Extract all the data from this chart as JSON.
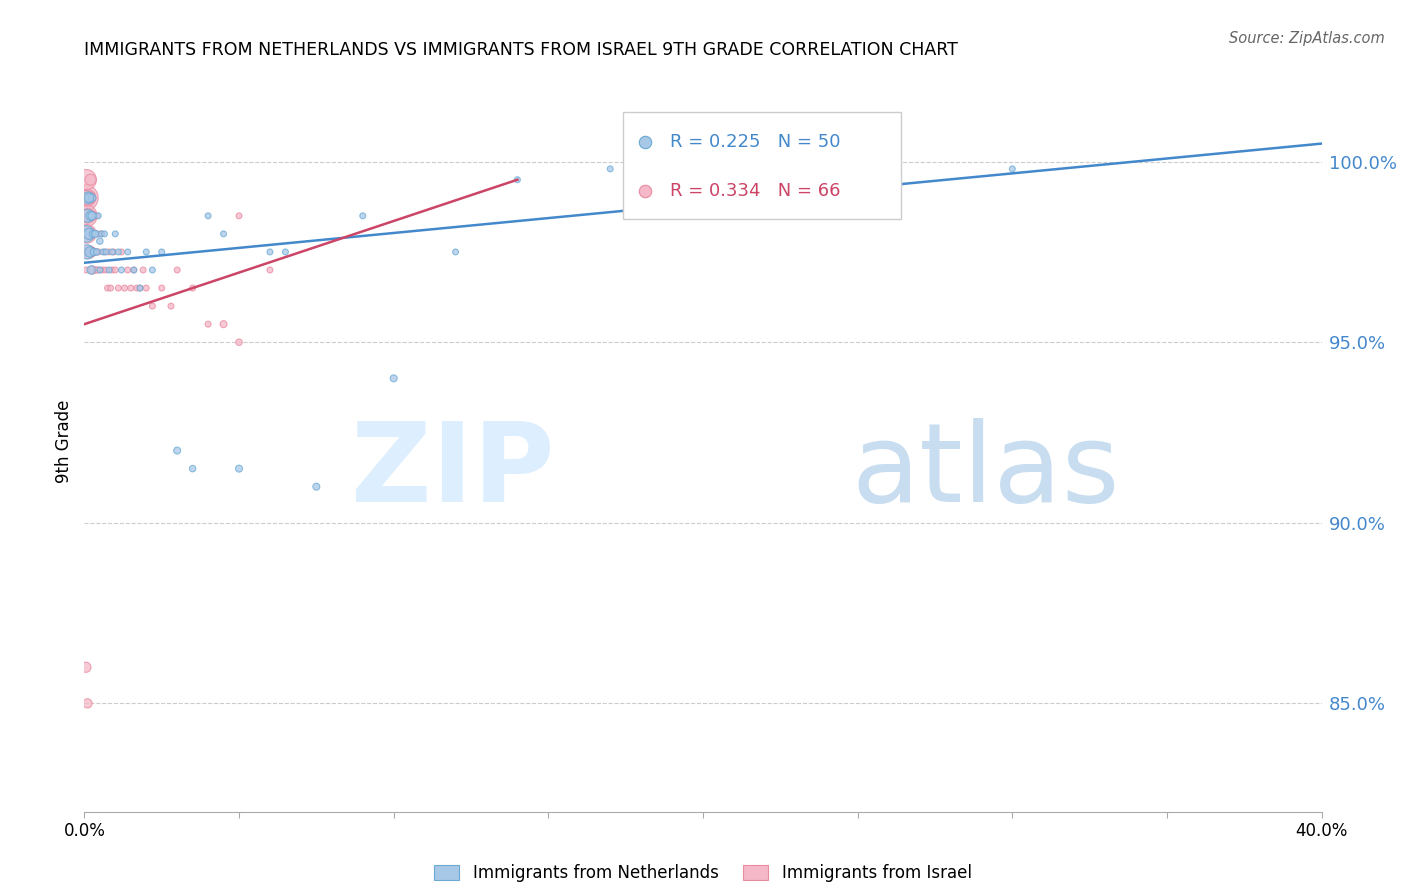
{
  "title": "IMMIGRANTS FROM NETHERLANDS VS IMMIGRANTS FROM ISRAEL 9TH GRADE CORRELATION CHART",
  "source": "Source: ZipAtlas.com",
  "ylabel_left": "9th Grade",
  "xlim": [
    0.0,
    40.0
  ],
  "ylim": [
    82.0,
    102.5
  ],
  "legend1_R": "0.225",
  "legend1_N": "50",
  "legend2_R": "0.334",
  "legend2_N": "66",
  "blue_color": "#a8c8e8",
  "blue_edge_color": "#6aaad4",
  "pink_color": "#f4b8c8",
  "pink_edge_color": "#e88aa0",
  "blue_line_color": "#4488cc",
  "pink_line_color": "#cc4466",
  "right_tick_color": "#4488cc",
  "yticks": [
    85.0,
    90.0,
    95.0,
    100.0
  ],
  "trendline_nl_x0": 0.0,
  "trendline_nl_y0": 97.2,
  "trendline_nl_x1": 40.0,
  "trendline_nl_y1": 100.5,
  "trendline_il_x0": 0.0,
  "trendline_il_y0": 95.5,
  "trendline_il_x1": 14.0,
  "trendline_il_y1": 99.5,
  "netherlands_x": [
    0.05,
    0.08,
    0.1,
    0.12,
    0.15,
    0.18,
    0.2,
    0.22,
    0.25,
    0.28,
    0.3,
    0.35,
    0.4,
    0.45,
    0.5,
    0.55,
    0.6,
    0.65,
    0.7,
    0.8,
    0.9,
    1.0,
    1.1,
    1.2,
    1.4,
    1.6,
    1.8,
    2.0,
    2.2,
    2.5,
    3.0,
    3.5,
    4.0,
    4.5,
    5.0,
    6.0,
    6.5,
    7.5,
    9.0,
    10.0,
    12.0,
    14.0,
    17.0,
    20.0,
    25.0,
    30.0,
    0.15,
    0.25,
    0.35,
    0.5
  ],
  "netherlands_y": [
    98.0,
    97.5,
    98.5,
    99.0,
    98.0,
    97.5,
    98.5,
    97.0,
    99.0,
    98.0,
    97.5,
    98.0,
    97.5,
    98.5,
    97.0,
    98.0,
    97.5,
    98.0,
    97.5,
    97.0,
    97.5,
    98.0,
    97.5,
    97.0,
    97.5,
    97.0,
    96.5,
    97.5,
    97.0,
    97.5,
    92.0,
    91.5,
    98.5,
    98.0,
    91.5,
    97.5,
    97.5,
    91.0,
    98.5,
    94.0,
    97.5,
    99.5,
    99.8,
    99.8,
    99.5,
    99.8,
    99.0,
    98.5,
    98.0,
    97.8
  ],
  "netherlands_sizes": [
    80,
    60,
    50,
    40,
    35,
    30,
    25,
    20,
    18,
    15,
    15,
    12,
    12,
    10,
    10,
    10,
    10,
    10,
    10,
    10,
    10,
    10,
    10,
    10,
    10,
    10,
    10,
    10,
    10,
    10,
    14,
    12,
    10,
    10,
    14,
    10,
    10,
    14,
    10,
    14,
    10,
    10,
    10,
    10,
    10,
    10,
    25,
    20,
    15,
    12
  ],
  "israel_x": [
    0.02,
    0.04,
    0.06,
    0.08,
    0.1,
    0.12,
    0.14,
    0.16,
    0.18,
    0.2,
    0.22,
    0.24,
    0.26,
    0.28,
    0.3,
    0.32,
    0.35,
    0.38,
    0.4,
    0.43,
    0.46,
    0.5,
    0.55,
    0.6,
    0.65,
    0.7,
    0.75,
    0.8,
    0.85,
    0.9,
    0.95,
    1.0,
    1.1,
    1.2,
    1.3,
    1.4,
    1.5,
    1.6,
    1.7,
    1.8,
    1.9,
    2.0,
    2.2,
    2.5,
    2.8,
    3.0,
    3.5,
    4.0,
    5.0,
    6.0,
    0.05,
    0.09,
    0.13,
    0.17,
    0.21,
    0.25,
    0.29,
    0.33,
    0.37,
    0.41,
    0.02,
    0.06,
    5.0,
    4.5,
    0.05,
    0.1
  ],
  "israel_y": [
    99.0,
    98.5,
    99.5,
    98.0,
    99.0,
    98.5,
    97.5,
    99.0,
    98.0,
    99.5,
    97.5,
    98.5,
    97.0,
    98.5,
    97.5,
    98.0,
    97.5,
    98.5,
    97.0,
    98.0,
    97.5,
    97.0,
    98.0,
    97.0,
    97.5,
    97.0,
    96.5,
    97.5,
    96.5,
    97.0,
    97.5,
    97.0,
    96.5,
    97.5,
    96.5,
    97.0,
    96.5,
    97.0,
    96.5,
    96.5,
    97.0,
    96.5,
    96.0,
    96.5,
    96.0,
    97.0,
    96.5,
    95.5,
    98.5,
    97.0,
    99.0,
    98.5,
    98.0,
    99.0,
    97.5,
    98.5,
    97.5,
    98.0,
    97.5,
    97.0,
    97.5,
    97.0,
    95.0,
    95.5,
    86.0,
    85.0
  ],
  "israel_sizes": [
    200,
    150,
    120,
    100,
    80,
    60,
    50,
    45,
    40,
    35,
    30,
    25,
    20,
    18,
    16,
    14,
    12,
    12,
    10,
    10,
    10,
    10,
    10,
    10,
    10,
    10,
    10,
    10,
    10,
    10,
    10,
    10,
    10,
    10,
    10,
    10,
    10,
    10,
    10,
    10,
    10,
    10,
    10,
    10,
    10,
    10,
    10,
    10,
    10,
    10,
    60,
    40,
    30,
    25,
    20,
    18,
    15,
    12,
    12,
    10,
    10,
    10,
    12,
    14,
    30,
    25
  ]
}
